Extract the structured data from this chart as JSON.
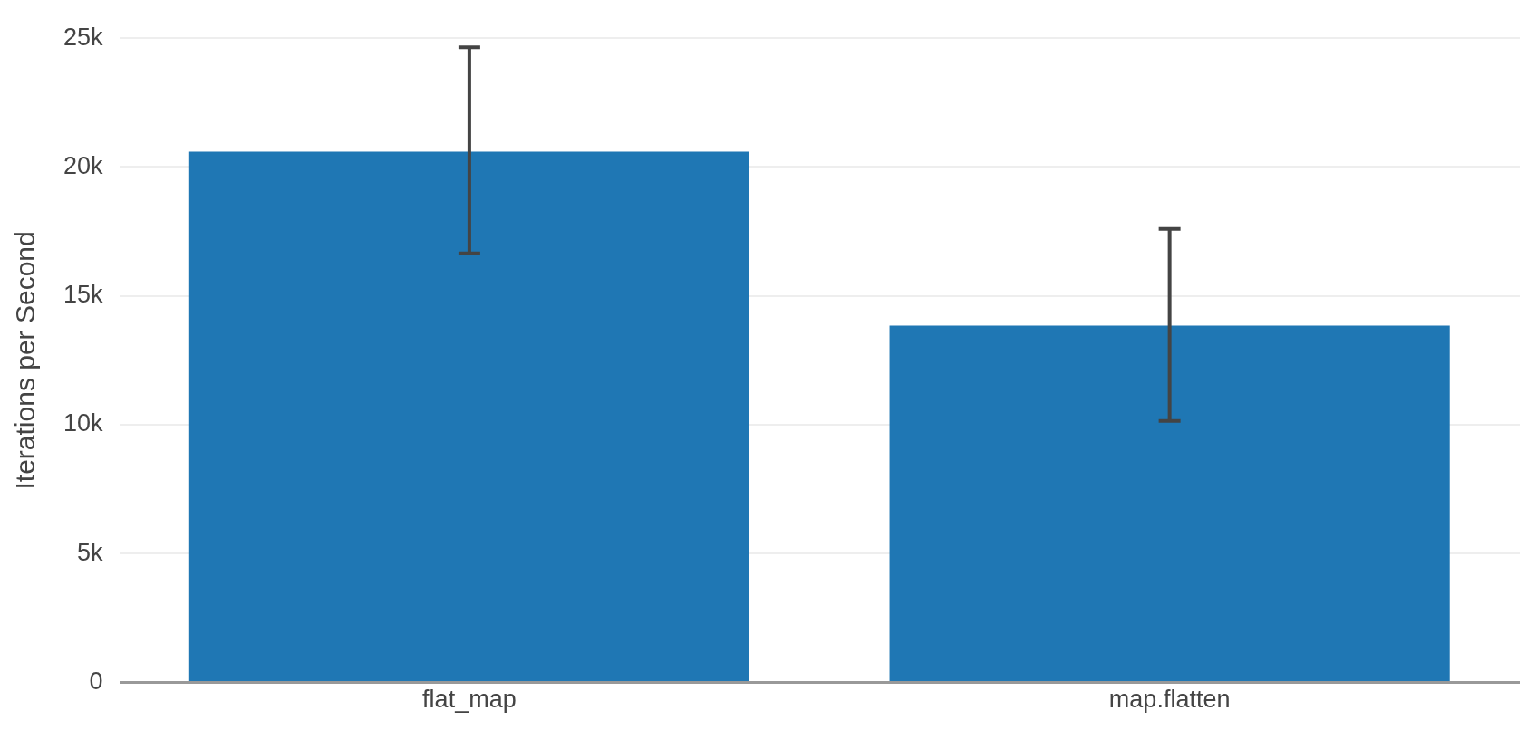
{
  "chart_data": {
    "type": "bar",
    "ylabel": "Iterations per Second",
    "categories": [
      "flat_map",
      "map.flatten"
    ],
    "values": [
      20600,
      13850
    ],
    "errors": [
      [
        16650,
        24650
      ],
      [
        10150,
        17600
      ]
    ],
    "color": "#1f77b4",
    "ylim": [
      0,
      25000
    ],
    "yticks": [
      {
        "value": 0,
        "label": "0"
      },
      {
        "value": 5000,
        "label": "5k"
      },
      {
        "value": 10000,
        "label": "10k"
      },
      {
        "value": 15000,
        "label": "15k"
      },
      {
        "value": 20000,
        "label": "20k"
      },
      {
        "value": 25000,
        "label": "25k"
      }
    ],
    "grid": "y",
    "legend": false
  }
}
